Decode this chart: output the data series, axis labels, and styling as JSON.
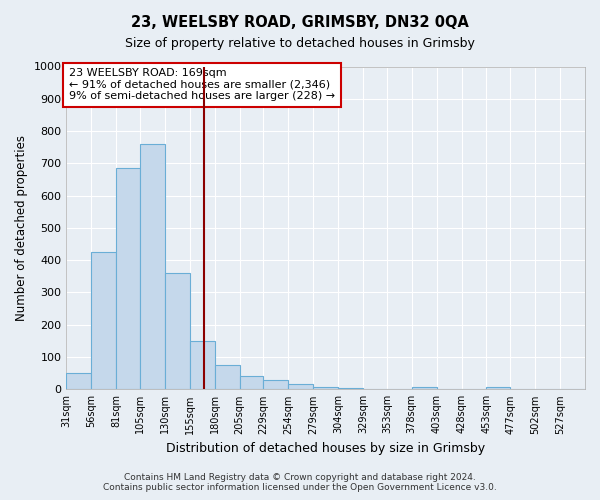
{
  "title": "23, WEELSBY ROAD, GRIMSBY, DN32 0QA",
  "subtitle": "Size of property relative to detached houses in Grimsby",
  "xlabel": "Distribution of detached houses by size in Grimsby",
  "ylabel": "Number of detached properties",
  "bar_values": [
    50,
    425,
    685,
    760,
    360,
    150,
    75,
    40,
    28,
    15,
    8,
    5,
    0,
    0,
    8,
    0,
    0,
    8,
    0,
    0,
    0
  ],
  "bin_labels": [
    "31sqm",
    "56sqm",
    "81sqm",
    "105sqm",
    "130sqm",
    "155sqm",
    "180sqm",
    "205sqm",
    "229sqm",
    "254sqm",
    "279sqm",
    "304sqm",
    "329sqm",
    "353sqm",
    "378sqm",
    "403sqm",
    "428sqm",
    "453sqm",
    "477sqm",
    "502sqm",
    "527sqm"
  ],
  "bin_edges": [
    31,
    56,
    81,
    105,
    130,
    155,
    180,
    205,
    229,
    254,
    279,
    304,
    329,
    353,
    378,
    403,
    428,
    453,
    477,
    502,
    527,
    552
  ],
  "bar_color": "#c5d8eb",
  "bar_edge_color": "#6aaed6",
  "vline_x": 169,
  "vline_color": "#8b0000",
  "annotation_line1": "23 WEELSBY ROAD: 169sqm",
  "annotation_line2": "← 91% of detached houses are smaller (2,346)",
  "annotation_line3": "9% of semi-detached houses are larger (228) →",
  "annotation_box_color": "#cc0000",
  "ylim": [
    0,
    1000
  ],
  "yticks": [
    0,
    100,
    200,
    300,
    400,
    500,
    600,
    700,
    800,
    900,
    1000
  ],
  "plot_bg_color": "#e8eef4",
  "fig_bg_color": "#e8eef4",
  "grid_color": "#ffffff",
  "footer_line1": "Contains HM Land Registry data © Crown copyright and database right 2024.",
  "footer_line2": "Contains public sector information licensed under the Open Government Licence v3.0."
}
